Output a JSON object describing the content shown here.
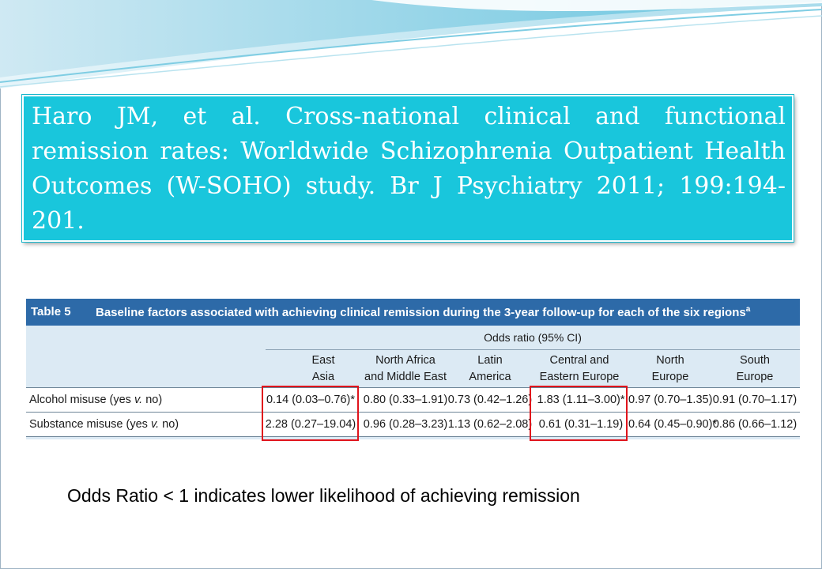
{
  "citation": {
    "text": "Haro JM, et al. Cross-national clinical and functional remission rates: Worldwide Schizophrenia Outpatient Health Outcomes (W-SOHO) study. Br J Psychiatry 2011; 199:194-201."
  },
  "table": {
    "number": "Table 5",
    "caption": "Baseline factors associated with achieving clinical remission during the 3-year follow-up for each of the six regions",
    "caption_superscript": "a",
    "group_header": "Odds ratio (95% CI)",
    "columns": [
      [
        "East",
        "Asia"
      ],
      [
        "North Africa",
        "and Middle East"
      ],
      [
        "Latin",
        "America"
      ],
      [
        "Central and",
        "Eastern Europe"
      ],
      [
        "North",
        "Europe"
      ],
      [
        "South",
        "Europe"
      ]
    ],
    "rows": [
      {
        "label": "Alcohol misuse (yes v. no)",
        "values": [
          "0.14 (0.03–0.76)*",
          "0.80 (0.33–1.91)",
          "0.73 (0.42–1.26)",
          "1.83 (1.11–3.00)*",
          "0.97 (0.70–1.35)",
          "0.91 (0.70–1.17)"
        ]
      },
      {
        "label": "Substance misuse (yes v. no)",
        "values": [
          "2.28 (0.27–19.04)",
          "0.96 (0.28–3.23)",
          "1.13 (0.62–2.08)",
          "0.61 (0.31–1.19)",
          "0.64 (0.45–0.90)*",
          "0.86 (0.66–1.12)"
        ]
      }
    ],
    "highlighted_columns": [
      "East Asia",
      "Central and Eastern Europe"
    ]
  },
  "note": "Odds Ratio < 1 indicates lower likelihood of achieving remission",
  "colors": {
    "citation_background": "#19c6dc",
    "table_title_bar": "#2d6aa8",
    "table_background": "#dceaf4",
    "highlight": "#e0141c"
  }
}
